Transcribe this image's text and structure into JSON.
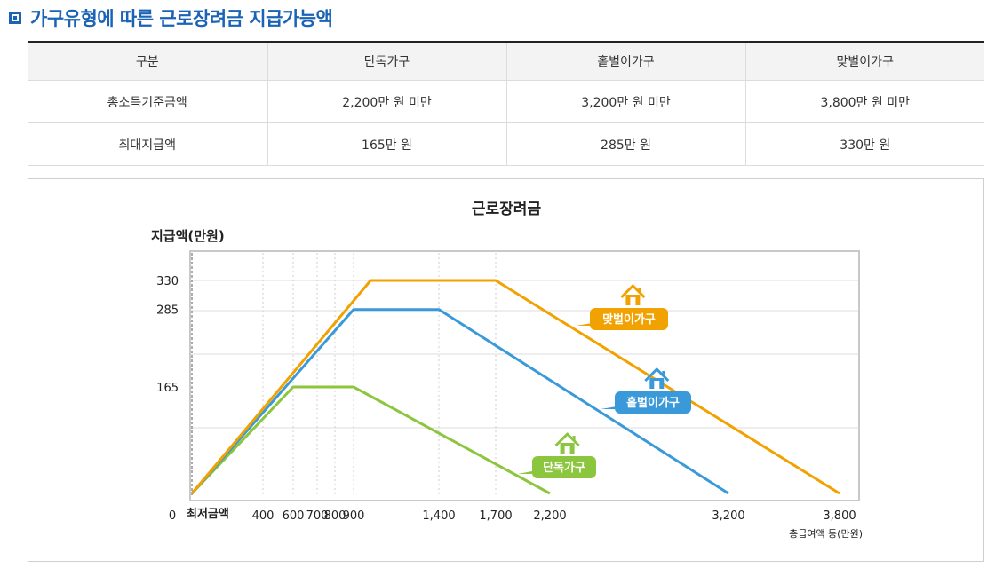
{
  "page": {
    "title": "가구유형에 따른 근로장려금 지급가능액"
  },
  "table": {
    "headers": [
      "구분",
      "단독가구",
      "홑벌이가구",
      "맞벌이가구"
    ],
    "rows": [
      [
        "총소득기준금액",
        "2,200만 원 미만",
        "3,200만 원 미만",
        "3,800만 원 미만"
      ],
      [
        "최대지급액",
        "165만 원",
        "285만 원",
        "330만 원"
      ]
    ]
  },
  "chart_data": {
    "type": "line",
    "title": "근로장려금",
    "ylabel": "지급액(만원)",
    "xlabel": "총급여액 등(만원)",
    "x_origin_label": "0",
    "x_min_label": "최저금액",
    "x_ticks": [
      400,
      600,
      700,
      800,
      900,
      1400,
      1700,
      2200,
      3200,
      3800
    ],
    "x_tick_labels": [
      "400",
      "600",
      "700",
      "800",
      "900",
      "1,400",
      "1,700",
      "2,200",
      "3,200",
      "3,800"
    ],
    "y_ticks": [
      165,
      285,
      330
    ],
    "y_tick_labels": [
      "165",
      "285",
      "330"
    ],
    "grid": true,
    "series": [
      {
        "name": "단독가구",
        "color": "#8cc63e",
        "icon": "house-icon",
        "x": [
          0,
          600,
          900,
          2200
        ],
        "y": [
          0,
          165,
          165,
          0
        ]
      },
      {
        "name": "홑벌이가구",
        "color": "#3a9ad9",
        "icon": "house-icon",
        "x": [
          0,
          900,
          1400,
          3200
        ],
        "y": [
          0,
          285,
          285,
          0
        ]
      },
      {
        "name": "맞벌이가구",
        "color": "#f2a200",
        "icon": "house-icon",
        "x": [
          0,
          1000,
          1700,
          3800
        ],
        "y": [
          0,
          330,
          330,
          0
        ]
      }
    ]
  }
}
